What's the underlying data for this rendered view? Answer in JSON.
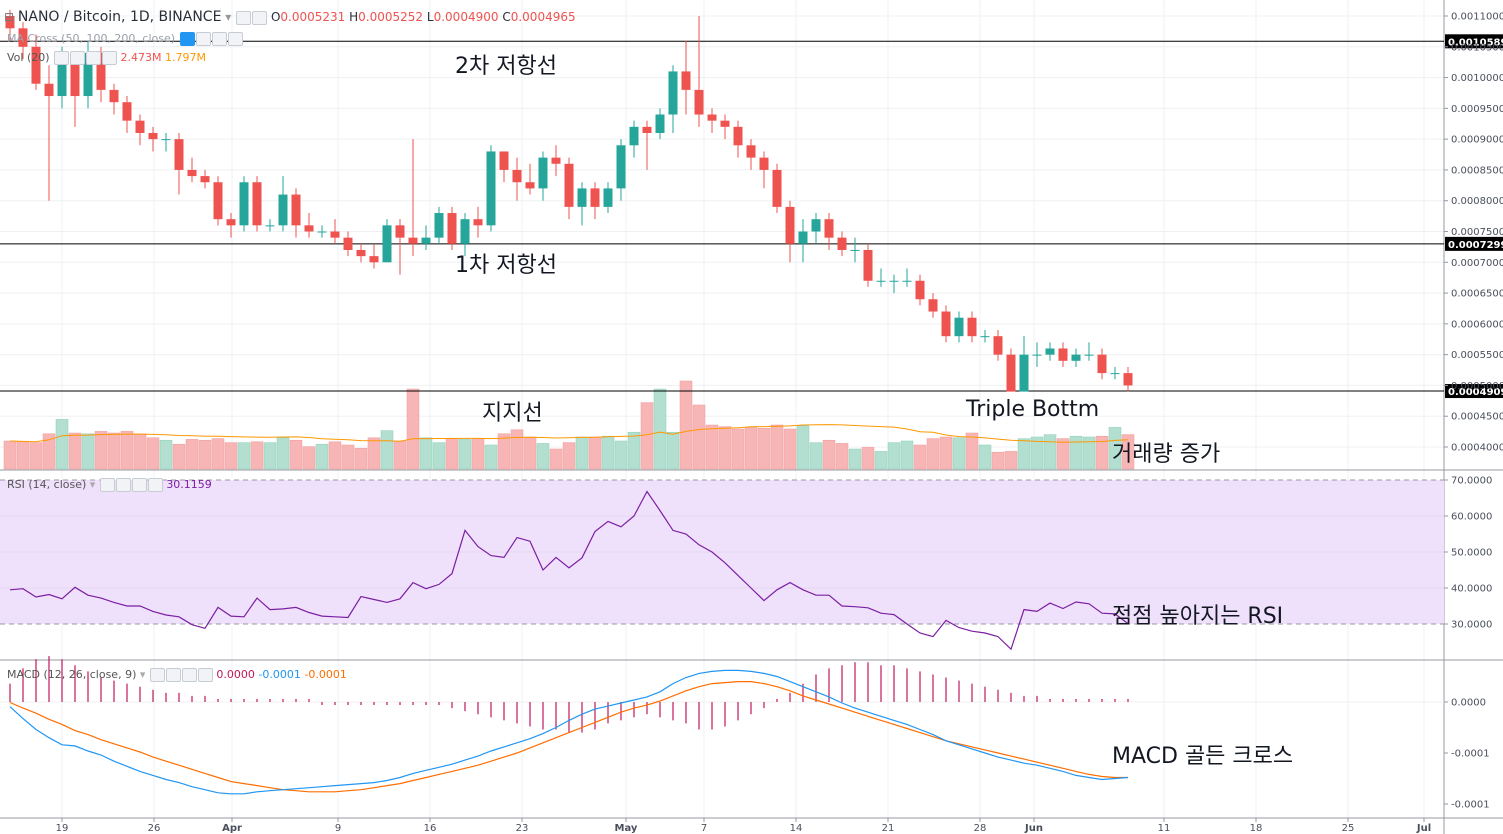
{
  "header": {
    "symbol": "NANO / Bitcoin, 1D, BINANCE",
    "ohlc": {
      "o_label": "O",
      "o": "0.0005231",
      "h_label": "H",
      "h": "0.0005252",
      "l_label": "L",
      "l": "0.0004900",
      "c_label": "C",
      "c": "0.0004965"
    },
    "ma_text": "MA Cross (50, 100, 200, close)",
    "vol_label": "Vol (20)",
    "vol_value_1": "2.473M",
    "vol_value_2": "1.797M"
  },
  "rsi_header": {
    "label": "RSI (14, close)",
    "value": "30.1159"
  },
  "macd_header": {
    "label": "MACD (12, 26, close, 9)",
    "v1": "0.0000",
    "v2": "-0.0001",
    "v3": "-0.0001"
  },
  "annotations": {
    "resistance2": "2차 저항선",
    "resistance1": "1차 저항선",
    "support": "지지선",
    "triple_bottom": "Triple Bottm",
    "volume_up": "거래량 증가",
    "rsi_rising": "점점 높아지는 RSI",
    "macd_cross": "MACD 골든 크로스"
  },
  "colors": {
    "up": "#26a69a",
    "down": "#ef5350",
    "vol_up": "#b2dfcf",
    "vol_down": "#f7b6b5",
    "rsi_line": "#7b1fa2",
    "rsi_band": "#efe0fb",
    "macd_line": "#2196f3",
    "signal_line": "#ff6d00",
    "histogram": "#c2185b",
    "vol_ma": "#ff9800"
  },
  "chart_data": [
    {
      "type": "candlestick",
      "title": "NANO / Bitcoin, 1D, BINANCE",
      "x_tick_labels": [
        "19",
        "26",
        "Apr",
        "9",
        "16",
        "23",
        "May",
        "7",
        "14",
        "21",
        "28",
        "Jun",
        "11",
        "18",
        "25",
        "Jul"
      ],
      "y_tick_labels": [
        "0.0011000",
        "0.0010500",
        "0.0010000",
        "0.0009500",
        "0.0009000",
        "0.0008500",
        "0.0008000",
        "0.0007500",
        "0.0007000",
        "0.0006500",
        "0.0006000",
        "0.0005500",
        "0.0005000",
        "0.0004500",
        "0.0004000"
      ],
      "ylim": [
        0.00037,
        0.00112
      ],
      "horizontal_levels": [
        {
          "value": 0.0010589,
          "label": "0.0010589"
        },
        {
          "value": 0.0007299,
          "label": "0.0007299"
        },
        {
          "value": 0.0004909,
          "label": "0.0004909"
        }
      ],
      "candles": [
        [
          0.0011,
          0.00108,
          0.00111,
          0.00106
        ],
        [
          0.00108,
          0.00105,
          0.00109,
          0.00103
        ],
        [
          0.00105,
          0.00099,
          0.00107,
          0.00098
        ],
        [
          0.00099,
          0.00097,
          0.00102,
          0.0008
        ],
        [
          0.00097,
          0.00103,
          0.00105,
          0.00095
        ],
        [
          0.00103,
          0.00097,
          0.00104,
          0.00092
        ],
        [
          0.00097,
          0.00104,
          0.00106,
          0.00095
        ],
        [
          0.00104,
          0.00098,
          0.00105,
          0.00096
        ],
        [
          0.00098,
          0.00096,
          0.00099,
          0.00094
        ],
        [
          0.00096,
          0.00093,
          0.00097,
          0.00091
        ],
        [
          0.00093,
          0.00091,
          0.00094,
          0.00089
        ],
        [
          0.00091,
          0.0009,
          0.00092,
          0.00088
        ],
        [
          0.0009,
          0.0009,
          0.00091,
          0.00088
        ],
        [
          0.0009,
          0.00085,
          0.00091,
          0.00081
        ],
        [
          0.00085,
          0.00084,
          0.00087,
          0.00083
        ],
        [
          0.00084,
          0.00083,
          0.00085,
          0.00082
        ],
        [
          0.00083,
          0.00077,
          0.00084,
          0.00076
        ],
        [
          0.00077,
          0.00076,
          0.00078,
          0.00074
        ],
        [
          0.00076,
          0.00083,
          0.00084,
          0.00075
        ],
        [
          0.00083,
          0.00076,
          0.00084,
          0.00075
        ],
        [
          0.00076,
          0.00076,
          0.00077,
          0.00075
        ],
        [
          0.00076,
          0.00081,
          0.00084,
          0.00075
        ],
        [
          0.00081,
          0.00076,
          0.00082,
          0.00074
        ],
        [
          0.00076,
          0.00075,
          0.00078,
          0.00074
        ],
        [
          0.00075,
          0.00075,
          0.00076,
          0.00074
        ],
        [
          0.00075,
          0.00074,
          0.00077,
          0.00073
        ],
        [
          0.00074,
          0.00072,
          0.00075,
          0.00071
        ],
        [
          0.00072,
          0.00071,
          0.00073,
          0.0007
        ],
        [
          0.00071,
          0.0007,
          0.00073,
          0.00069
        ],
        [
          0.0007,
          0.00076,
          0.00077,
          0.0007
        ],
        [
          0.00076,
          0.00074,
          0.00077,
          0.00068
        ],
        [
          0.00074,
          0.00073,
          0.0009,
          0.00071
        ],
        [
          0.00073,
          0.00074,
          0.00076,
          0.00072
        ],
        [
          0.00074,
          0.00078,
          0.00079,
          0.00073
        ],
        [
          0.00078,
          0.00073,
          0.00079,
          0.00072
        ],
        [
          0.00073,
          0.00077,
          0.00078,
          0.00071
        ],
        [
          0.00077,
          0.00076,
          0.00079,
          0.00074
        ],
        [
          0.00076,
          0.00088,
          0.00089,
          0.00075
        ],
        [
          0.00088,
          0.00085,
          0.00088,
          0.00083
        ],
        [
          0.00085,
          0.00083,
          0.00087,
          0.0008
        ],
        [
          0.00083,
          0.00082,
          0.00086,
          0.00081
        ],
        [
          0.00082,
          0.00087,
          0.00088,
          0.0008
        ],
        [
          0.00087,
          0.00086,
          0.00089,
          0.00084
        ],
        [
          0.00086,
          0.00079,
          0.00087,
          0.00077
        ],
        [
          0.00079,
          0.00082,
          0.00083,
          0.00076
        ],
        [
          0.00082,
          0.00079,
          0.00083,
          0.00077
        ],
        [
          0.00079,
          0.00082,
          0.00083,
          0.00078
        ],
        [
          0.00082,
          0.00089,
          0.0009,
          0.0008
        ],
        [
          0.00089,
          0.00092,
          0.00093,
          0.00087
        ],
        [
          0.00092,
          0.00091,
          0.00093,
          0.00085
        ],
        [
          0.00091,
          0.00094,
          0.00095,
          0.0009
        ],
        [
          0.00094,
          0.00101,
          0.00102,
          0.00091
        ],
        [
          0.00101,
          0.00098,
          0.00106,
          0.00094
        ],
        [
          0.00098,
          0.00094,
          0.0011,
          0.00092
        ],
        [
          0.00094,
          0.00093,
          0.00095,
          0.00091
        ],
        [
          0.00093,
          0.00092,
          0.00094,
          0.0009
        ],
        [
          0.00092,
          0.00089,
          0.00093,
          0.00087
        ],
        [
          0.00089,
          0.00087,
          0.0009,
          0.00085
        ],
        [
          0.00087,
          0.00085,
          0.00088,
          0.00082
        ],
        [
          0.00085,
          0.00079,
          0.00086,
          0.00078
        ],
        [
          0.00079,
          0.00073,
          0.0008,
          0.0007
        ],
        [
          0.00073,
          0.00075,
          0.00077,
          0.0007
        ],
        [
          0.00075,
          0.00077,
          0.00078,
          0.00073
        ],
        [
          0.00077,
          0.00074,
          0.00078,
          0.00072
        ],
        [
          0.00074,
          0.00072,
          0.00075,
          0.00071
        ],
        [
          0.00072,
          0.00072,
          0.00074,
          0.0007
        ],
        [
          0.00072,
          0.00067,
          0.00073,
          0.00066
        ],
        [
          0.00067,
          0.00067,
          0.00069,
          0.00066
        ],
        [
          0.00067,
          0.00067,
          0.00068,
          0.00065
        ],
        [
          0.00067,
          0.00067,
          0.00069,
          0.00066
        ],
        [
          0.00067,
          0.00064,
          0.00068,
          0.00063
        ],
        [
          0.00064,
          0.00062,
          0.00065,
          0.00061
        ],
        [
          0.00062,
          0.00058,
          0.00063,
          0.00057
        ],
        [
          0.00058,
          0.00061,
          0.00062,
          0.00057
        ],
        [
          0.00061,
          0.00058,
          0.00062,
          0.00057
        ],
        [
          0.00058,
          0.00058,
          0.00059,
          0.00057
        ],
        [
          0.00058,
          0.00055,
          0.00059,
          0.00054
        ],
        [
          0.00055,
          0.00049,
          0.00056,
          0.00049
        ],
        [
          0.00049,
          0.00055,
          0.00058,
          0.00049
        ],
        [
          0.00055,
          0.00055,
          0.00057,
          0.00053
        ],
        [
          0.00055,
          0.00056,
          0.00057,
          0.00054
        ],
        [
          0.00056,
          0.00054,
          0.00057,
          0.00053
        ],
        [
          0.00054,
          0.00055,
          0.00056,
          0.00053
        ],
        [
          0.00055,
          0.00055,
          0.00057,
          0.00054
        ],
        [
          0.00055,
          0.00052,
          0.00056,
          0.00051
        ],
        [
          0.00052,
          0.00052,
          0.00053,
          0.00051
        ],
        [
          0.00052,
          0.0005,
          0.00053,
          0.00049
        ]
      ],
      "volume": [
        0.35,
        0.34,
        0.33,
        0.44,
        0.62,
        0.45,
        0.44,
        0.47,
        0.45,
        0.47,
        0.44,
        0.39,
        0.36,
        0.31,
        0.37,
        0.36,
        0.38,
        0.33,
        0.33,
        0.34,
        0.33,
        0.39,
        0.36,
        0.28,
        0.31,
        0.34,
        0.3,
        0.26,
        0.39,
        0.48,
        0.35,
        1.0,
        0.39,
        0.33,
        0.38,
        0.37,
        0.38,
        0.3,
        0.44,
        0.49,
        0.4,
        0.32,
        0.25,
        0.33,
        0.4,
        0.4,
        0.41,
        0.35,
        0.46,
        0.83,
        1.0,
        0.46,
        1.1,
        0.8,
        0.55,
        0.53,
        0.5,
        0.52,
        0.51,
        0.55,
        0.5,
        0.54,
        0.33,
        0.36,
        0.32,
        0.25,
        0.27,
        0.22,
        0.33,
        0.35,
        0.3,
        0.38,
        0.4,
        0.39,
        0.45,
        0.3,
        0.21,
        0.22,
        0.38,
        0.4,
        0.43,
        0.38,
        0.41,
        0.4,
        0.41,
        0.52,
        0.43
      ]
    },
    {
      "type": "line",
      "title": "RSI (14, close)",
      "y_tick_labels": [
        "70.0000",
        "60.0000",
        "50.0000",
        "40.0000",
        "30.0000"
      ],
      "ylim": [
        20,
        75
      ],
      "values": [
        39.5,
        39.8,
        37.5,
        38.2,
        37.0,
        40.2,
        38.0,
        37.2,
        36.0,
        35.0,
        35.0,
        33.5,
        32.5,
        32.0,
        29.8,
        28.8,
        34.6,
        32.2,
        32.0,
        37.2,
        34.0,
        34.2,
        34.6,
        33.2,
        32.2,
        32.0,
        31.8,
        37.6,
        36.8,
        36.0,
        37.0,
        41.5,
        39.8,
        41.0,
        44.0,
        56.0,
        51.5,
        49.0,
        48.5,
        54.0,
        53.0,
        45.0,
        48.5,
        45.6,
        48.4,
        55.7,
        58.5,
        57.0,
        60.0,
        66.8,
        61.5,
        56.0,
        55.0,
        52.0,
        50.0,
        47.0,
        43.5,
        40.0,
        36.5,
        39.5,
        41.5,
        39.5,
        38.0,
        38.0,
        35.0,
        34.8,
        34.5,
        33.0,
        32.6,
        30.0,
        27.5,
        26.5,
        31.0,
        29.0,
        28.0,
        27.5,
        26.5,
        23.0,
        34.0,
        33.5,
        35.8,
        34.3,
        36.1,
        35.6,
        33.0,
        32.8,
        30.1
      ]
    },
    {
      "type": "line",
      "title": "MACD (12, 26, close, 9)",
      "y_tick_labels": [
        "0.0000",
        "-0.0001",
        "-0.0001"
      ],
      "ylim": [
        -0.000107,
        3.7e-05
      ],
      "series": [
        {
          "values": [
            -4.6e-06,
            -1.63e-05,
            -2.7e-05,
            -3.5e-05,
            -4.2e-05,
            -4.3e-05,
            -4.8e-05,
            -5.2e-05,
            -5.8e-05,
            -6.3e-05,
            -6.8e-05,
            -7.2e-05,
            -7.6e-05,
            -7.9e-05,
            -8.3e-05,
            -8.6e-05,
            -8.9e-05,
            -9e-05,
            -9e-05,
            -8.8e-05,
            -8.7e-05,
            -8.6e-05,
            -8.5e-05,
            -8.4e-05,
            -8.3e-05,
            -8.2e-05,
            -8.1e-05,
            -8e-05,
            -7.9e-05,
            -7.7e-05,
            -7.4e-05,
            -7e-05,
            -6.7e-05,
            -6.4e-05,
            -6.1e-05,
            -5.7e-05,
            -5.3e-05,
            -4.8e-05,
            -4.4e-05,
            -4e-05,
            -3.6e-05,
            -3.1e-05,
            -2.5e-05,
            -1.8e-05,
            -1.2e-05,
            -7e-06,
            -4e-06,
            -1e-06,
            2e-06,
            5e-06,
            1e-05,
            1.8e-05,
            2.4e-05,
            2.8e-05,
            3e-05,
            3.1e-05,
            3.1e-05,
            3e-05,
            2.8e-05,
            2.5e-05,
            2e-05,
            1.5e-05,
            1e-05,
            5e-06,
            -1e-06,
            -6e-06,
            -1e-05,
            -1.4e-05,
            -1.8e-05,
            -2.2e-05,
            -2.7e-05,
            -3.2e-05,
            -3.8e-05,
            -4.2e-05,
            -4.6e-05,
            -5e-05,
            -5.4e-05,
            -5.7e-05,
            -6e-05,
            -6.2e-05,
            -6.5e-05,
            -6.8e-05,
            -7.2e-05,
            -7.4e-05,
            -7.6e-05,
            -7.5e-05,
            -7.4e-05
          ]
        },
        {
          "values": [
            -5e-07,
            -6e-06,
            -1.1e-05,
            -1.7e-05,
            -2.2e-05,
            -2.8e-05,
            -3.2e-05,
            -3.7e-05,
            -4.1e-05,
            -4.5e-05,
            -4.9e-05,
            -5.4e-05,
            -5.8e-05,
            -6.2e-05,
            -6.6e-05,
            -7e-05,
            -7.4e-05,
            -7.8e-05,
            -8e-05,
            -8.2e-05,
            -8.4e-05,
            -8.6e-05,
            -8.7e-05,
            -8.8e-05,
            -8.8e-05,
            -8.8e-05,
            -8.7e-05,
            -8.6e-05,
            -8.4e-05,
            -8.2e-05,
            -8e-05,
            -7.7e-05,
            -7.4e-05,
            -7.1e-05,
            -6.8e-05,
            -6.5e-05,
            -6.2e-05,
            -5.8e-05,
            -5.4e-05,
            -5e-05,
            -4.5e-05,
            -4e-05,
            -3.5e-05,
            -3e-05,
            -2.5e-05,
            -2e-05,
            -1.5e-05,
            -1e-05,
            -6e-06,
            -3e-06,
            1e-06,
            6e-06,
            1.1e-05,
            1.5e-05,
            1.8e-05,
            1.9e-05,
            2e-05,
            2e-05,
            1.8e-05,
            1.5e-05,
            1.1e-05,
            6e-06,
            2e-06,
            -2e-06,
            -6e-06,
            -1e-05,
            -1.4e-05,
            -1.8e-05,
            -2.2e-05,
            -2.6e-05,
            -3e-05,
            -3.4e-05,
            -3.8e-05,
            -4.1e-05,
            -4.4e-05,
            -4.7e-05,
            -5e-05,
            -5.3e-05,
            -5.6e-05,
            -5.9e-05,
            -6.2e-05,
            -6.5e-05,
            -6.8e-05,
            -7.1e-05,
            -7.3e-05,
            -7.4e-05,
            -7.4e-05
          ]
        },
        {
          "values": [
            6e-06,
            1.1e-05,
            1.4e-05,
            1.5e-05,
            1.4e-05,
            1.2e-05,
            1e-05,
            8e-06,
            7e-06,
            6e-06,
            5e-06,
            4e-06,
            3e-06,
            3e-06,
            2e-06,
            2e-06,
            1e-06,
            1e-06,
            1e-06,
            1e-06,
            1e-06,
            1e-06,
            1e-06,
            1e-06,
            -1e-06,
            -1e-06,
            -1e-06,
            -1e-06,
            -1e-06,
            -1e-06,
            -1e-06,
            -1e-06,
            -1e-06,
            -1e-06,
            -2e-06,
            -3e-06,
            -4e-06,
            -5e-06,
            -6e-06,
            -7e-06,
            -8e-06,
            -9e-06,
            -9e-06,
            -1e-05,
            -1e-05,
            -9e-06,
            -7e-06,
            -6e-06,
            -5e-06,
            -4e-06,
            -5e-06,
            -6e-06,
            -7e-06,
            -9e-06,
            -9e-06,
            -8e-06,
            -6e-06,
            -4e-06,
            -2e-06,
            1e-06,
            3e-06,
            6e-06,
            9e-06,
            1.1e-05,
            1.2e-05,
            1.3e-05,
            1.3e-05,
            1.2e-05,
            1.2e-05,
            1.1e-05,
            1e-05,
            9e-06,
            8e-06,
            7e-06,
            6e-06,
            5e-06,
            4e-06,
            3e-06,
            2e-06,
            2e-06,
            1e-06,
            1e-06,
            1e-06,
            1e-06,
            1e-06,
            1e-06,
            1e-06
          ]
        }
      ]
    }
  ]
}
